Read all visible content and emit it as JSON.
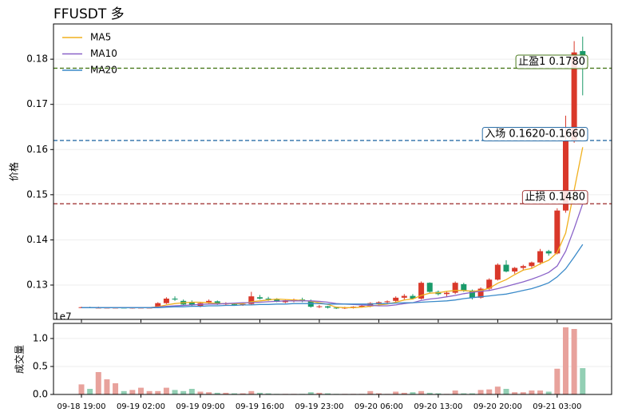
{
  "chart_data": [
    {
      "type": "candlestick",
      "title": "FFUSDT  多",
      "ylabel": "价格",
      "categories": [
        "09-18 19:00",
        null,
        null,
        null,
        null,
        null,
        null,
        "09-19 02:00",
        null,
        null,
        null,
        null,
        null,
        null,
        "09-19 09:00",
        null,
        null,
        null,
        null,
        null,
        null,
        "09-19 16:00",
        null,
        null,
        null,
        null,
        null,
        null,
        "09-19 23:00",
        null,
        null,
        null,
        null,
        null,
        null,
        "09-20 06:00",
        null,
        null,
        null,
        null,
        null,
        null,
        "09-20 13:00",
        null,
        null,
        null,
        null,
        null,
        null,
        "09-20 20:00",
        null,
        null,
        null,
        null,
        null,
        null,
        "09-21 03:00",
        null,
        null,
        null
      ],
      "open": [
        0.125,
        0.1251,
        0.125,
        0.125,
        0.125,
        0.125,
        0.1249,
        0.125,
        0.125,
        0.1252,
        0.126,
        0.127,
        0.1265,
        0.1262,
        0.1253,
        0.1262,
        0.1264,
        0.1258,
        0.1258,
        0.1256,
        0.1258,
        0.1273,
        0.127,
        0.1268,
        0.1262,
        0.1265,
        0.1268,
        0.1265,
        0.1252,
        0.1253,
        0.125,
        0.1249,
        0.125,
        0.1252,
        0.1253,
        0.126,
        0.1262,
        0.1265,
        0.1272,
        0.1276,
        0.127,
        0.1305,
        0.1285,
        0.128,
        0.1283,
        0.1302,
        0.1288,
        0.1272,
        0.1292,
        0.1312,
        0.1345,
        0.133,
        0.1338,
        0.1342,
        0.135,
        0.1375,
        0.137,
        0.1465,
        0.162,
        0.1818
      ],
      "high": [
        0.1252,
        0.1252,
        0.1252,
        0.1251,
        0.1251,
        0.1251,
        0.1251,
        0.1251,
        0.1251,
        0.1262,
        0.1273,
        0.1275,
        0.1268,
        0.1266,
        0.1262,
        0.1268,
        0.1266,
        0.1262,
        0.126,
        0.126,
        0.1285,
        0.1278,
        0.1274,
        0.1271,
        0.1268,
        0.127,
        0.1272,
        0.1268,
        0.1256,
        0.1254,
        0.1252,
        0.1252,
        0.1253,
        0.1255,
        0.1262,
        0.1264,
        0.1266,
        0.1275,
        0.128,
        0.128,
        0.1308,
        0.1306,
        0.1288,
        0.1285,
        0.1308,
        0.1305,
        0.129,
        0.1295,
        0.1315,
        0.1348,
        0.1355,
        0.134,
        0.1345,
        0.1352,
        0.138,
        0.1378,
        0.147,
        0.1675,
        0.184,
        0.185
      ],
      "low": [
        0.1249,
        0.1249,
        0.1249,
        0.1249,
        0.1249,
        0.1249,
        0.1248,
        0.1249,
        0.1249,
        0.125,
        0.1258,
        0.1265,
        0.1255,
        0.1252,
        0.1251,
        0.1258,
        0.1256,
        0.1255,
        0.1254,
        0.1254,
        0.1256,
        0.1268,
        0.1265,
        0.1262,
        0.126,
        0.1262,
        0.1262,
        0.125,
        0.1249,
        0.1248,
        0.1247,
        0.1247,
        0.1248,
        0.125,
        0.1251,
        0.1256,
        0.1258,
        0.1262,
        0.1268,
        0.1268,
        0.1268,
        0.1283,
        0.1277,
        0.1274,
        0.128,
        0.1285,
        0.1268,
        0.127,
        0.1288,
        0.131,
        0.1328,
        0.1325,
        0.1332,
        0.1338,
        0.1345,
        0.1365,
        0.1368,
        0.146,
        0.1615,
        0.172
      ],
      "close": [
        0.1251,
        0.125,
        0.125,
        0.125,
        0.125,
        0.1249,
        0.125,
        0.125,
        0.125,
        0.126,
        0.127,
        0.1268,
        0.1257,
        0.1255,
        0.126,
        0.1265,
        0.1258,
        0.1259,
        0.1256,
        0.1258,
        0.1275,
        0.127,
        0.1268,
        0.1263,
        0.1266,
        0.1268,
        0.1264,
        0.1252,
        0.1253,
        0.125,
        0.1249,
        0.125,
        0.1252,
        0.1254,
        0.126,
        0.1262,
        0.1264,
        0.1272,
        0.1276,
        0.127,
        0.1305,
        0.1285,
        0.128,
        0.1283,
        0.1305,
        0.1288,
        0.1272,
        0.1292,
        0.1312,
        0.1345,
        0.133,
        0.1338,
        0.1342,
        0.135,
        0.1375,
        0.137,
        0.1465,
        0.162,
        0.1815,
        0.1805
      ],
      "up_color": "#d9382a",
      "down_color": "#1a9a6a",
      "series": [
        {
          "name": "MA5",
          "color": "#f0b01e",
          "values": [
            0.125,
            0.125,
            0.125,
            0.125,
            0.125,
            0.125,
            0.125,
            0.125,
            0.125,
            0.1252,
            0.1256,
            0.1259,
            0.1261,
            0.1262,
            0.1262,
            0.1261,
            0.1259,
            0.1259,
            0.1259,
            0.1259,
            0.1263,
            0.1265,
            0.1267,
            0.1269,
            0.1268,
            0.1267,
            0.1266,
            0.1264,
            0.1261,
            0.1257,
            0.1251,
            0.125,
            0.125,
            0.1251,
            0.1253,
            0.1256,
            0.1258,
            0.1262,
            0.1267,
            0.1269,
            0.1277,
            0.1282,
            0.1283,
            0.1286,
            0.1288,
            0.1288,
            0.1286,
            0.1288,
            0.1293,
            0.1304,
            0.1312,
            0.1323,
            0.1333,
            0.1337,
            0.1347,
            0.1355,
            0.1372,
            0.1415,
            0.151,
            0.1605
          ]
        },
        {
          "name": "MA10",
          "color": "#8a63c8",
          "values": [
            0.125,
            0.125,
            0.125,
            0.125,
            0.125,
            0.125,
            0.125,
            0.125,
            0.125,
            0.1251,
            0.1253,
            0.1254,
            0.1255,
            0.1256,
            0.1257,
            0.1258,
            0.1258,
            0.1259,
            0.126,
            0.1261,
            0.1261,
            0.1262,
            0.1263,
            0.1264,
            0.1265,
            0.1265,
            0.1265,
            0.1265,
            0.1264,
            0.1262,
            0.1259,
            0.1258,
            0.1257,
            0.1256,
            0.1255,
            0.1254,
            0.1254,
            0.1256,
            0.1259,
            0.1261,
            0.1266,
            0.1269,
            0.1271,
            0.1274,
            0.1277,
            0.1281,
            0.1284,
            0.1286,
            0.1288,
            0.1292,
            0.1297,
            0.1302,
            0.1307,
            0.1313,
            0.132,
            0.1328,
            0.1342,
            0.1375,
            0.1425,
            0.148
          ]
        },
        {
          "name": "MA20",
          "color": "#3a8ac9",
          "values": [
            0.125,
            0.125,
            0.125,
            0.125,
            0.125,
            0.125,
            0.125,
            0.125,
            0.125,
            0.125,
            0.1251,
            0.1252,
            0.1252,
            0.1253,
            0.1253,
            0.1254,
            0.1254,
            0.1255,
            0.1255,
            0.1256,
            0.1256,
            0.1257,
            0.1257,
            0.1258,
            0.1258,
            0.1259,
            0.1259,
            0.1259,
            0.1259,
            0.1258,
            0.1258,
            0.1258,
            0.1258,
            0.1258,
            0.1258,
            0.1259,
            0.1259,
            0.126,
            0.1261,
            0.1261,
            0.1262,
            0.1263,
            0.1264,
            0.1265,
            0.1267,
            0.127,
            0.1272,
            0.1274,
            0.1276,
            0.1278,
            0.128,
            0.1284,
            0.1288,
            0.1292,
            0.1298,
            0.1305,
            0.1318,
            0.1336,
            0.1362,
            0.139
          ]
        }
      ],
      "levels": [
        {
          "label": "止盈1 0.1780",
          "value": 0.178,
          "color": "#4a7a1e"
        },
        {
          "label": "入场 0.1620-0.1660",
          "value": 0.162,
          "color": "#2c6fa8"
        },
        {
          "label": "止损 0.1480",
          "value": 0.148,
          "color": "#a33a3a"
        }
      ],
      "ylim": [
        0.1224,
        0.1878
      ],
      "yticks": [
        0.13,
        0.14,
        0.15,
        0.16,
        0.17,
        0.18
      ],
      "grid": true,
      "legend": "upper left"
    },
    {
      "type": "bar",
      "ylabel": "成交量",
      "offset_label": "1e7",
      "values": [
        0.18,
        0.1,
        0.4,
        0.27,
        0.2,
        0.06,
        0.08,
        0.12,
        0.06,
        0.06,
        0.12,
        0.08,
        0.06,
        0.1,
        0.05,
        0.04,
        0.03,
        0.03,
        0.02,
        0.02,
        0.06,
        0.03,
        0.02,
        0.01,
        0.01,
        0.01,
        0.01,
        0.04,
        0.03,
        0.02,
        0.01,
        0.01,
        0.01,
        0.01,
        0.06,
        0.02,
        0.01,
        0.05,
        0.03,
        0.04,
        0.06,
        0.03,
        0.02,
        0.01,
        0.07,
        0.02,
        0.02,
        0.08,
        0.09,
        0.14,
        0.1,
        0.04,
        0.04,
        0.07,
        0.07,
        0.05,
        0.46,
        1.2,
        1.17,
        0.47
      ],
      "up_color": "#e8a29c",
      "down_color": "#93cfb4",
      "ylim": [
        0,
        1.27
      ],
      "yticks": [
        {
          "value": 0,
          "label": "0.0"
        },
        0.5,
        {
          "value": 1,
          "label": "1.0"
        }
      ],
      "grid": true
    }
  ]
}
